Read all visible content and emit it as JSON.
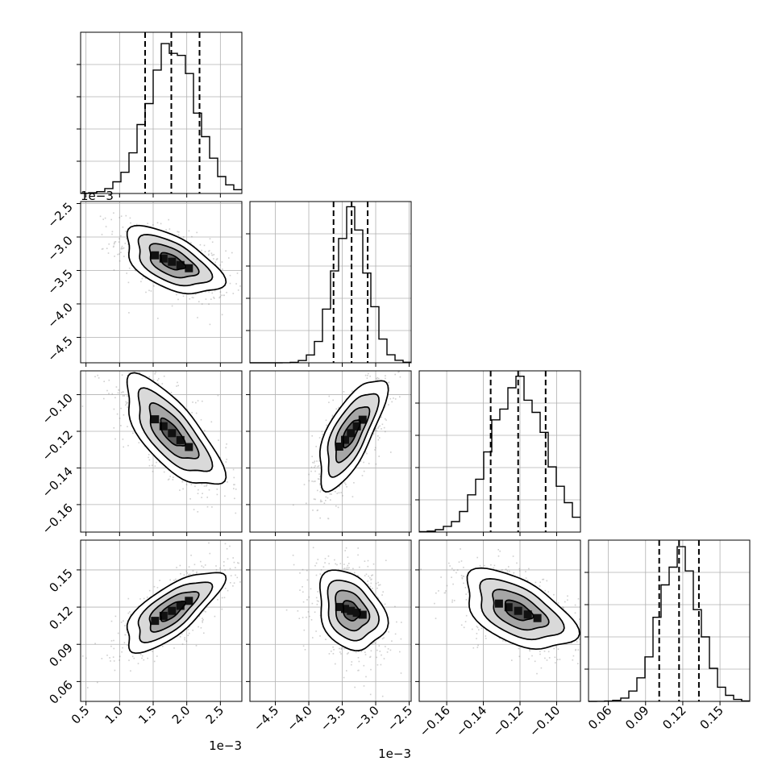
{
  "chart_data": {
    "type": "corner",
    "grid": true,
    "n_params": 4,
    "params": [
      {
        "ticks": [
          "0.5",
          "1.0",
          "1.5",
          "2.0",
          "2.5"
        ],
        "tick_values": [
          0.5,
          1.0,
          1.5,
          2.0,
          2.5
        ],
        "range": [
          0.42,
          2.82
        ],
        "offset_label": "1e−3",
        "quantiles": [
          1.38,
          1.77,
          2.19
        ],
        "mean": 1.78,
        "sd": 0.36
      },
      {
        "ticks": [
          "−4.5",
          "−4.0",
          "−3.5",
          "−3.0",
          "−2.5"
        ],
        "tick_values": [
          -4.5,
          -4.0,
          -3.5,
          -3.0,
          -2.5
        ],
        "range": [
          -4.88,
          -2.47
        ],
        "offset_label": "1e−3",
        "quantiles": [
          -3.63,
          -3.36,
          -3.12
        ],
        "mean": -3.37,
        "sd": 0.25
      },
      {
        "ticks": [
          "−0.16",
          "−0.14",
          "−0.12",
          "−0.10"
        ],
        "tick_values": [
          -0.16,
          -0.14,
          -0.12,
          -0.1
        ],
        "range": [
          -0.175,
          -0.087
        ],
        "offset_label": "",
        "quantiles": [
          -0.136,
          -0.121,
          -0.106
        ],
        "mean": -0.121,
        "sd": 0.015
      },
      {
        "ticks": [
          "0.06",
          "0.09",
          "0.12",
          "0.15"
        ],
        "tick_values": [
          0.06,
          0.09,
          0.12,
          0.15
        ],
        "range": [
          0.044,
          0.174
        ],
        "offset_label": "",
        "quantiles": [
          0.101,
          0.117,
          0.133
        ],
        "mean": 0.117,
        "sd": 0.016
      }
    ],
    "correlations": [
      {
        "i": 1,
        "j": 0,
        "rho": -0.55
      },
      {
        "i": 2,
        "j": 0,
        "rho": -0.72
      },
      {
        "i": 2,
        "j": 1,
        "rho": 0.7
      },
      {
        "i": 3,
        "j": 0,
        "rho": 0.72
      },
      {
        "i": 3,
        "j": 1,
        "rho": -0.28
      },
      {
        "i": 3,
        "j": 2,
        "rho": -0.52
      }
    ],
    "contour_levels_sigma": [
      0.5,
      1.0,
      1.5,
      2.0
    ],
    "line_color": "#000000",
    "point_color": "#777777",
    "grid_color": "#b0b0b0"
  }
}
